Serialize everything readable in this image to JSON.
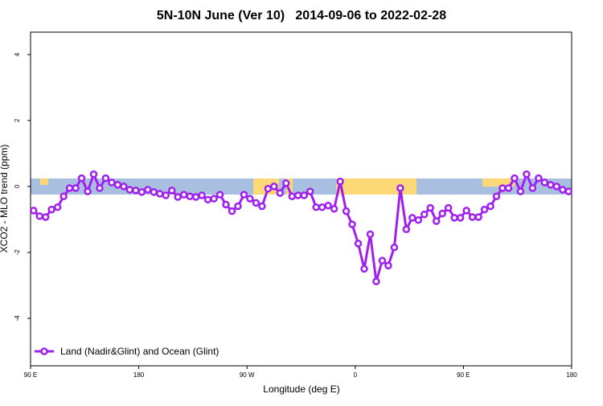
{
  "chart_data": {
    "type": "line",
    "title": "5N-10N June (Ver 10)   2014-09-06 to 2022-02-28",
    "x_label": "Longitude (deg E)",
    "y_label": "XCO2 - MLO trend (ppm)",
    "xlim": [
      90,
      540
    ],
    "ylim": [
      -5.44,
      4.68
    ],
    "xticks": [
      {
        "value": 90,
        "label": "90 E"
      },
      {
        "value": 180,
        "label": "180"
      },
      {
        "value": 270,
        "label": "90 W"
      },
      {
        "value": 360,
        "label": "0"
      },
      {
        "value": 450,
        "label": "90 E"
      },
      {
        "value": 540,
        "label": "180"
      }
    ],
    "yticks": [
      -4,
      -2,
      0,
      2,
      4
    ],
    "legend": "bottom-left",
    "x": [
      92.5,
      97.5,
      102.5,
      107.5,
      112.5,
      117.5,
      122.5,
      127.5,
      132.5,
      137.5,
      142.5,
      147.5,
      152.5,
      157.5,
      162.5,
      167.5,
      172.5,
      177.5,
      182.5,
      187.5,
      192.5,
      197.5,
      202.5,
      207.5,
      212.5,
      217.5,
      222.5,
      227.5,
      232.5,
      237.5,
      242.5,
      247.5,
      252.5,
      257.5,
      262.5,
      267.5,
      272.5,
      277.5,
      282.5,
      287.5,
      292.5,
      297.5,
      302.5,
      307.5,
      312.5,
      317.5,
      322.5,
      327.5,
      332.5,
      337.5,
      342.5,
      347.5,
      352.5,
      357.5,
      362.5,
      367.5,
      372.5,
      377.5,
      382.5,
      387.5,
      392.5,
      397.5,
      402.5,
      407.5,
      412.5,
      417.5,
      422.5,
      427.5,
      432.5,
      437.5,
      442.5,
      447.5,
      452.5,
      457.5,
      462.5,
      467.5,
      472.5,
      477.5,
      482.5,
      487.5,
      492.5,
      497.5,
      502.5,
      507.5,
      512.5,
      517.5,
      522.5,
      527.5,
      532.5,
      537.5
    ],
    "series": [
      {
        "name": "Land (Nadir&Glint) and Ocean (Glint)",
        "color": "#a020f0",
        "values": [
          -0.73,
          -0.9,
          -0.93,
          -0.7,
          -0.63,
          -0.3,
          -0.05,
          -0.05,
          0.25,
          -0.15,
          0.37,
          -0.05,
          0.25,
          0.12,
          0.05,
          0.0,
          -0.1,
          -0.12,
          -0.17,
          -0.1,
          -0.17,
          -0.22,
          -0.27,
          -0.12,
          -0.32,
          -0.25,
          -0.3,
          -0.32,
          -0.27,
          -0.4,
          -0.37,
          -0.25,
          -0.55,
          -0.75,
          -0.6,
          -0.25,
          -0.37,
          -0.5,
          -0.6,
          -0.07,
          0.0,
          -0.2,
          0.1,
          -0.3,
          -0.27,
          -0.27,
          -0.15,
          -0.63,
          -0.63,
          -0.58,
          -0.68,
          0.15,
          -0.75,
          -1.15,
          -1.73,
          -2.5,
          -1.45,
          -2.88,
          -2.25,
          -2.4,
          -1.85,
          -0.05,
          -1.3,
          -0.95,
          -1.02,
          -0.85,
          -0.65,
          -1.05,
          -0.82,
          -0.65,
          -0.95,
          -0.95,
          -0.73,
          -0.93,
          -0.93,
          -0.7,
          -0.6,
          -0.3,
          -0.05,
          -0.05,
          0.25,
          -0.15,
          0.37,
          -0.05,
          0.25,
          0.12,
          0.05,
          0.0,
          -0.1,
          -0.15
        ]
      }
    ]
  }
}
